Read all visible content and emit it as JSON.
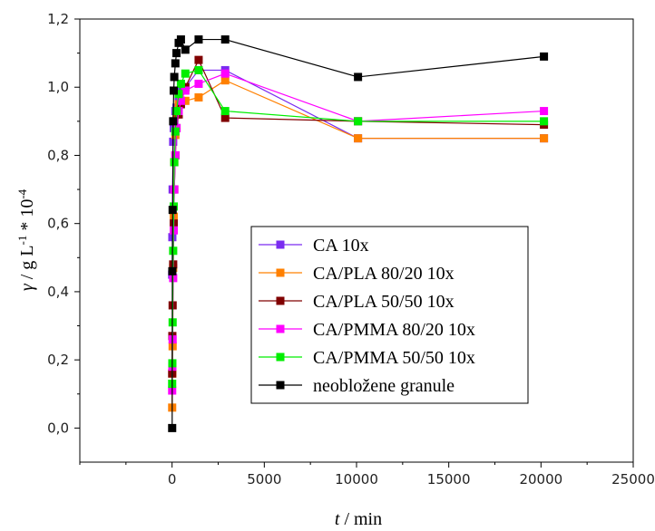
{
  "chart_data": {
    "type": "scatter",
    "title": "",
    "xlabel": {
      "symbol": "t",
      "rest": " / min"
    },
    "ylabel": {
      "symbol": "γ",
      "part1": " / g L",
      "sup1": "-1",
      "part2": " * 10",
      "sup2": "-4"
    },
    "xlim": [
      -5000,
      25000
    ],
    "ylim": [
      -0.1,
      1.2
    ],
    "x_ticks": [
      0,
      5000,
      10000,
      15000,
      20000,
      25000
    ],
    "x_tick_labels": [
      "0",
      "5000",
      "10000",
      "15000",
      "20000",
      "25000"
    ],
    "y_ticks": [
      0.0,
      0.2,
      0.4,
      0.6,
      0.8,
      1.0,
      1.2
    ],
    "y_tick_labels": [
      "0,0",
      "0,2",
      "0,4",
      "0,6",
      "0,8",
      "1,0",
      "1,2"
    ],
    "grid": false,
    "legend_position": "center-right",
    "series": [
      {
        "name": "CA 10x",
        "color": "#7a2bf0",
        "x": [
          5,
          15,
          30,
          60,
          90,
          120,
          180,
          240,
          360,
          480,
          720,
          1440,
          2880,
          10080,
          20160
        ],
        "y": [
          0.45,
          0.56,
          0.7,
          0.84,
          0.88,
          0.9,
          0.93,
          0.94,
          0.96,
          0.99,
          1.0,
          1.05,
          1.05,
          0.85,
          0.85
        ]
      },
      {
        "name": "CA/PLA 80/20 10x",
        "color": "#ff8000",
        "x": [
          5,
          15,
          30,
          60,
          90,
          120,
          180,
          240,
          360,
          480,
          720,
          1440,
          2880,
          10080,
          20160
        ],
        "y": [
          0.06,
          0.16,
          0.24,
          0.47,
          0.62,
          0.78,
          0.86,
          0.92,
          0.95,
          0.96,
          0.96,
          0.97,
          1.02,
          0.85,
          0.85
        ]
      },
      {
        "name": "CA/PLA 50/50 10x",
        "color": "#800000",
        "x": [
          5,
          15,
          30,
          60,
          90,
          120,
          180,
          240,
          360,
          480,
          720,
          1440,
          2880,
          10080,
          20160
        ],
        "y": [
          0.16,
          0.27,
          0.36,
          0.48,
          0.6,
          0.7,
          0.8,
          0.88,
          0.92,
          0.95,
          1.0,
          1.08,
          0.91,
          0.9,
          0.89
        ]
      },
      {
        "name": "CA/PMMA 80/20 10x",
        "color": "#ff00ff",
        "x": [
          5,
          15,
          30,
          60,
          90,
          120,
          180,
          240,
          360,
          480,
          720,
          1440,
          2880,
          10080,
          20160
        ],
        "y": [
          0.11,
          0.18,
          0.26,
          0.44,
          0.58,
          0.7,
          0.8,
          0.88,
          0.93,
          0.96,
          0.99,
          1.01,
          1.04,
          0.9,
          0.93
        ]
      },
      {
        "name": "CA/PMMA 50/50 10x",
        "color": "#00ee00",
        "x": [
          5,
          15,
          30,
          60,
          90,
          120,
          180,
          240,
          360,
          480,
          720,
          1440,
          2880,
          10080,
          20160
        ],
        "y": [
          0.13,
          0.19,
          0.31,
          0.52,
          0.65,
          0.78,
          0.87,
          0.93,
          0.98,
          1.01,
          1.04,
          1.05,
          0.93,
          0.9,
          0.9
        ]
      },
      {
        "name": "neobložene granule",
        "color": "#000000",
        "x": [
          5,
          15,
          30,
          60,
          90,
          120,
          180,
          240,
          360,
          480,
          720,
          1440,
          2880,
          10080,
          20160
        ],
        "y": [
          0.0,
          0.46,
          0.64,
          0.9,
          0.99,
          1.03,
          1.07,
          1.1,
          1.13,
          1.14,
          1.11,
          1.14,
          1.14,
          1.03,
          1.09
        ]
      }
    ]
  }
}
